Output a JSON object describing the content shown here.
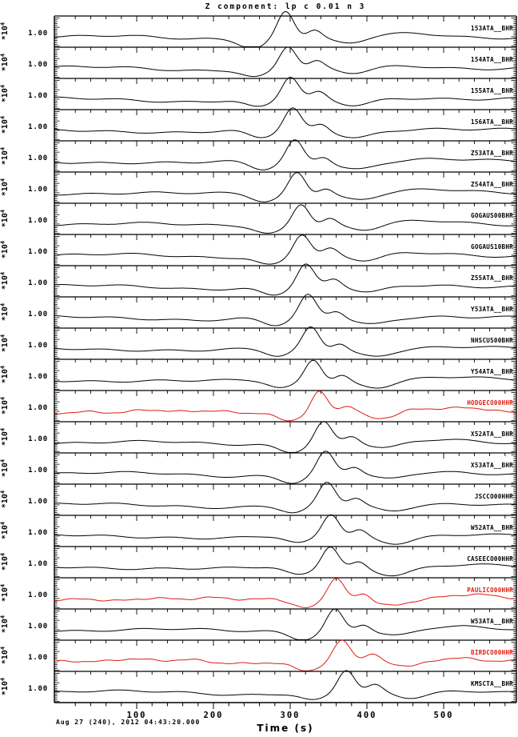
{
  "title": "Z component: lp c 0.01 n 3",
  "footer": {
    "reference_time": "Aug 27 (240), 2012 04:43:20.000",
    "xlabel": "Time (s)"
  },
  "axes": {
    "x_ticks_major": [
      100,
      200,
      300,
      400,
      500
    ],
    "x_minor_step_s": 20,
    "x_range_s": [
      0,
      590
    ],
    "amp_label": "1.00",
    "scale_label": "*10",
    "scale_exponent": "4"
  },
  "colors": {
    "black": "#000000",
    "red": "#dd1c10",
    "background": "#ffffff"
  },
  "chart_data": {
    "type": "line",
    "title": "Z component: lp c 0.01 n 3",
    "xlabel": "Time (s)",
    "x_range": [
      0,
      590
    ],
    "amplitude_scale_per_trace": "1.00 *10^4",
    "waveform_note": "Low-pass filtered (lp c 0.01 n 3) record section; each trace shows a long-period pulse whose peak time is listed",
    "traces": [
      {
        "station": "153ATA__BHR",
        "highlighted": false,
        "peak_time_s": 294
      },
      {
        "station": "154ATA__BHR",
        "highlighted": false,
        "peak_time_s": 297
      },
      {
        "station": "155ATA__BHR",
        "highlighted": false,
        "peak_time_s": 300
      },
      {
        "station": "156ATA__BHR",
        "highlighted": false,
        "peak_time_s": 303
      },
      {
        "station": "Z53ATA__BHR",
        "highlighted": false,
        "peak_time_s": 306
      },
      {
        "station": "Z54ATA__BHR",
        "highlighted": false,
        "peak_time_s": 309
      },
      {
        "station": "GOGAUS00BHR",
        "highlighted": false,
        "peak_time_s": 314
      },
      {
        "station": "GOGAUS10BHR",
        "highlighted": false,
        "peak_time_s": 315
      },
      {
        "station": "Z55ATA__BHR",
        "highlighted": false,
        "peak_time_s": 320
      },
      {
        "station": "Y53ATA__BHR",
        "highlighted": false,
        "peak_time_s": 323
      },
      {
        "station": "NHSCUS00BHR",
        "highlighted": false,
        "peak_time_s": 327
      },
      {
        "station": "Y54ATA__BHR",
        "highlighted": false,
        "peak_time_s": 330
      },
      {
        "station": "HODGECO00HHR",
        "highlighted": true,
        "peak_time_s": 338
      },
      {
        "station": "X52ATA__BHR",
        "highlighted": false,
        "peak_time_s": 343
      },
      {
        "station": "X53ATA__BHR",
        "highlighted": false,
        "peak_time_s": 346
      },
      {
        "station": "JSCCO00HHR",
        "highlighted": false,
        "peak_time_s": 348
      },
      {
        "station": "W52ATA__BHR",
        "highlighted": false,
        "peak_time_s": 353
      },
      {
        "station": "CASEECO00HHR",
        "highlighted": false,
        "peak_time_s": 352
      },
      {
        "station": "PAULICO00HHR",
        "highlighted": true,
        "peak_time_s": 359
      },
      {
        "station": "W53ATA__BHR",
        "highlighted": false,
        "peak_time_s": 358
      },
      {
        "station": "BIRDCO00HHR",
        "highlighted": true,
        "peak_time_s": 368
      },
      {
        "station": "KMSCTA__BHR",
        "highlighted": false,
        "peak_time_s": 373
      }
    ]
  }
}
